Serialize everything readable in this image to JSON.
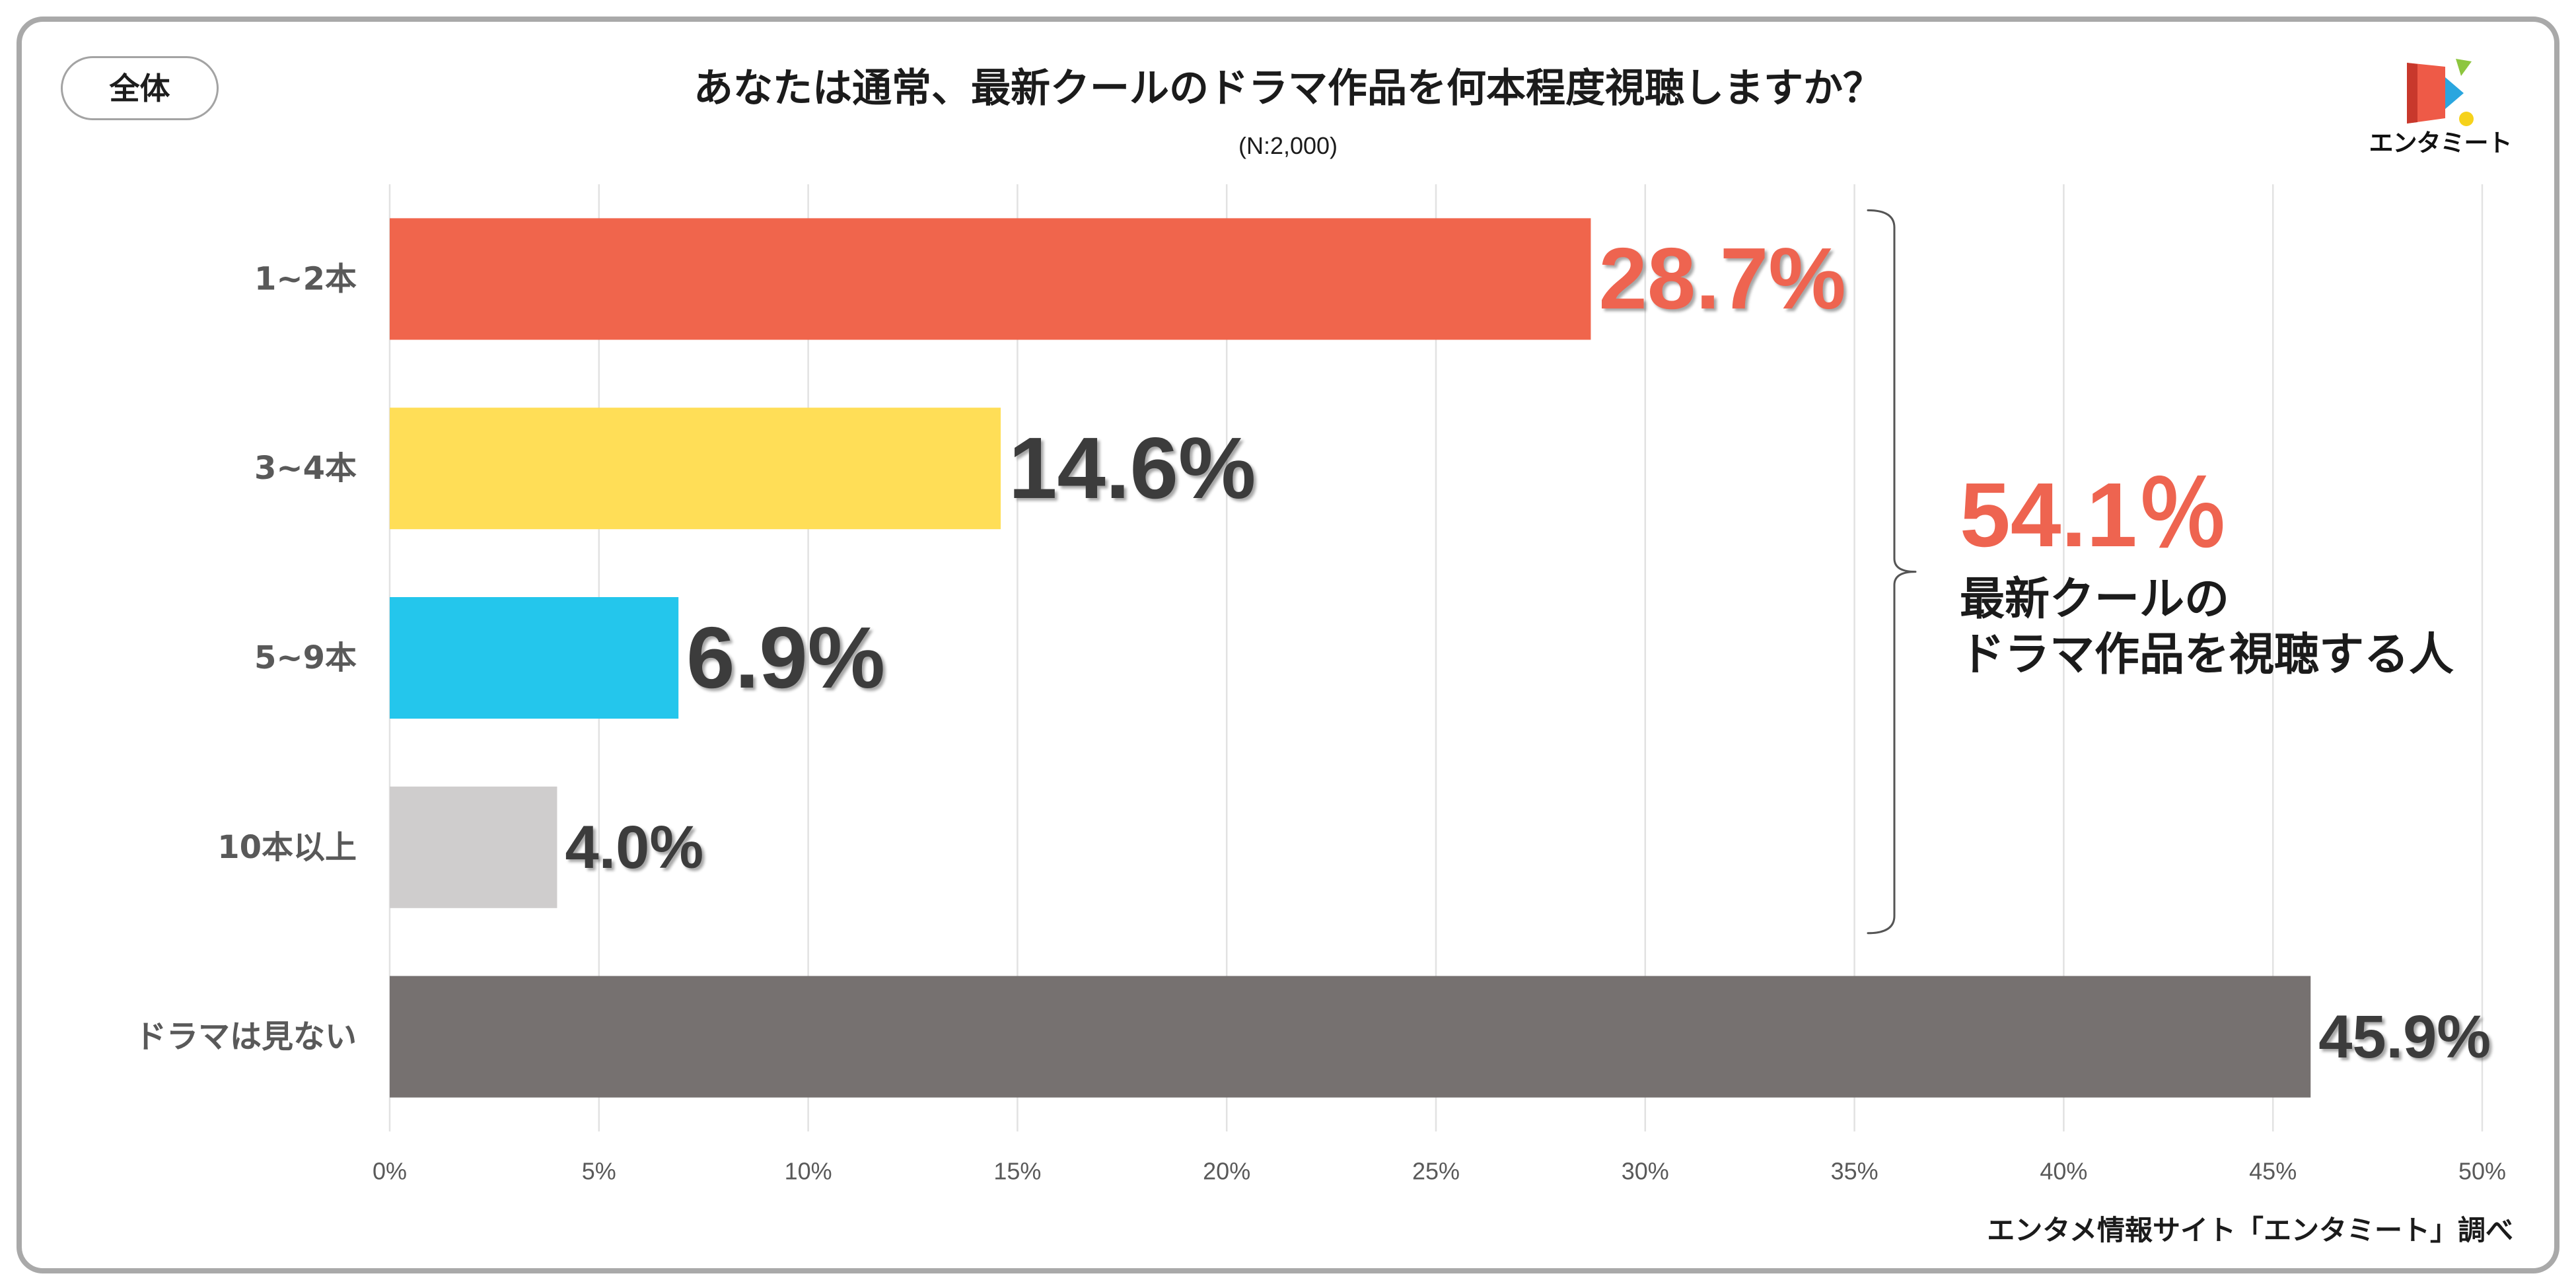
{
  "badge": {
    "label": "全体"
  },
  "logo": {
    "text": "エンタミート",
    "colors": {
      "door": "#EE5A47",
      "door_shade": "#C8382C",
      "diamond": "#2AA6DF",
      "leaf": "#8DC63F",
      "dot": "#F6D21B"
    }
  },
  "chart_data": {
    "type": "bar",
    "orientation": "horizontal",
    "title": "あなたは通常、最新クールのドラマ作品を何本程度視聴しますか？",
    "subtitle": "(N:2,000)",
    "categories": [
      "1~2本",
      "3~4本",
      "5~9本",
      "10本以上",
      "ドラマは見ない"
    ],
    "values": [
      28.7,
      14.6,
      6.9,
      4.0,
      45.9
    ],
    "value_labels": [
      "28.7%",
      "14.6%",
      "6.9%",
      "4.0%",
      "45.9%"
    ],
    "colors": [
      "#F0654C",
      "#FFDE57",
      "#24C6EC",
      "#CFCDCD",
      "#767170"
    ],
    "label_colors": [
      "#EE6450",
      "#3C3C3C",
      "#3C3C3C",
      "#3C3C3C",
      "#3C3C3C"
    ],
    "xlim": [
      0,
      50
    ],
    "xticks": [
      0,
      5,
      10,
      15,
      20,
      25,
      30,
      35,
      40,
      45,
      50
    ],
    "xtick_labels": [
      "0%",
      "5%",
      "10%",
      "15%",
      "20%",
      "25%",
      "30%",
      "35%",
      "40%",
      "45%",
      "50%"
    ],
    "grid": "vertical",
    "annotation": {
      "type": "bracket",
      "bracket_over": [
        0,
        1,
        2,
        3
      ],
      "value": "54.1％",
      "text": [
        "最新クールの",
        "ドラマ作品を視聴する人"
      ],
      "color": "#EE6450"
    }
  },
  "footer": {
    "source": "エンタメ情報サイト「エンタミート」調べ"
  }
}
